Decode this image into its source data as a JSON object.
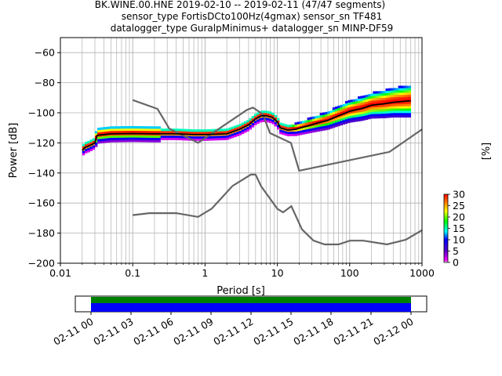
{
  "title_lines": [
    "BK.WINE.00.HNE   2019-02-10 -- 2019-02-11  (47/47 segments)",
    "sensor_type FortisDCto100Hz(4gmax) sensor_sn TF481",
    "datalogger_type GuralpMinimus+ datalogger_sn MINP-DF59"
  ],
  "chart_data": {
    "type": "heatmap",
    "xlabel": "Period [s]",
    "ylabel": "Power [dB]",
    "xscale": "log",
    "xlim": [
      0.01,
      1000
    ],
    "ylim": [
      -200,
      -50
    ],
    "x_ticks": [
      0.01,
      0.1,
      1,
      10,
      100,
      1000
    ],
    "x_tick_labels": [
      "0.01",
      "0.1",
      "1",
      "10",
      "100",
      "1000"
    ],
    "y_ticks": [
      -200,
      -180,
      -160,
      -140,
      -120,
      -100,
      -80,
      -60
    ],
    "y_tick_labels": [
      "−200",
      "−180",
      "−160",
      "−140",
      "−120",
      "−100",
      "−80",
      "−60"
    ],
    "grid": true,
    "colorbar": {
      "label": "[%]",
      "range": [
        0,
        30
      ],
      "ticks": [
        0,
        5,
        10,
        15,
        20,
        25,
        30
      ],
      "tick_labels": [
        "0",
        "5",
        "10",
        "15",
        "20",
        "25",
        "30"
      ],
      "colormap": "pqlx"
    },
    "noise_models": {
      "high": [
        [
          0.1,
          -91.5
        ],
        [
          0.22,
          -97.4
        ],
        [
          0.32,
          -110.5
        ],
        [
          0.8,
          -120
        ],
        [
          3.8,
          -98
        ],
        [
          4.6,
          -96.5
        ],
        [
          6.3,
          -101
        ],
        [
          7.9,
          -113.5
        ],
        [
          15.4,
          -120
        ],
        [
          20,
          -138.5
        ],
        [
          354.8,
          -126
        ],
        [
          1000,
          -111
        ]
      ],
      "low": [
        [
          0.1,
          -168
        ],
        [
          0.17,
          -166.7
        ],
        [
          0.4,
          -166.7
        ],
        [
          0.8,
          -169.2
        ],
        [
          1.24,
          -163.7
        ],
        [
          2.4,
          -148.6
        ],
        [
          4.3,
          -141.1
        ],
        [
          5.0,
          -141.1
        ],
        [
          6.0,
          -149
        ],
        [
          10.0,
          -163.8
        ],
        [
          12.0,
          -166.2
        ],
        [
          15.6,
          -162.1
        ],
        [
          21.9,
          -177.5
        ],
        [
          31.6,
          -185
        ],
        [
          45,
          -187.5
        ],
        [
          70,
          -187.5
        ],
        [
          101,
          -185
        ],
        [
          154,
          -185
        ],
        [
          328,
          -187.5
        ],
        [
          600,
          -184.4
        ],
        [
          1000,
          -178
        ]
      ]
    },
    "series": [
      {
        "name": "",
        "points": [
          [
            0.02,
            -125
          ],
          [
            0.022,
            -123
          ],
          [
            0.025,
            -122
          ],
          [
            0.03,
            -120
          ],
          [
            0.032,
            -115
          ],
          [
            0.05,
            -114
          ],
          [
            0.1,
            -113.8
          ],
          [
            0.2,
            -114
          ],
          [
            0.4,
            -114
          ],
          [
            0.7,
            -114.5
          ],
          [
            1.0,
            -114.5
          ],
          [
            2.0,
            -114
          ],
          [
            3.0,
            -111
          ],
          [
            4.0,
            -108
          ],
          [
            5.0,
            -104
          ],
          [
            6.0,
            -102
          ],
          [
            7.0,
            -102
          ],
          [
            8.5,
            -103
          ],
          [
            10.0,
            -106
          ],
          [
            11.0,
            -110
          ],
          [
            14.0,
            -111.5
          ],
          [
            18.0,
            -111
          ],
          [
            25.0,
            -109
          ],
          [
            35.0,
            -107
          ],
          [
            50.0,
            -105
          ],
          [
            70.0,
            -102
          ],
          [
            100.0,
            -99
          ],
          [
            150.0,
            -97
          ],
          [
            200.0,
            -95
          ],
          [
            300.0,
            -94
          ],
          [
            400.0,
            -93
          ],
          [
            700.0,
            -92
          ]
        ]
      }
    ],
    "time_strip": {
      "tick_labels": [
        "02-11 00",
        "02-11 03",
        "02-11 06",
        "02-11 09",
        "02-11 12",
        "02-11 15",
        "02-11 18",
        "02-11 21",
        "02-12 00"
      ],
      "colors": {
        "coverage": "#008000",
        "gaps": "#0000ff"
      }
    }
  }
}
